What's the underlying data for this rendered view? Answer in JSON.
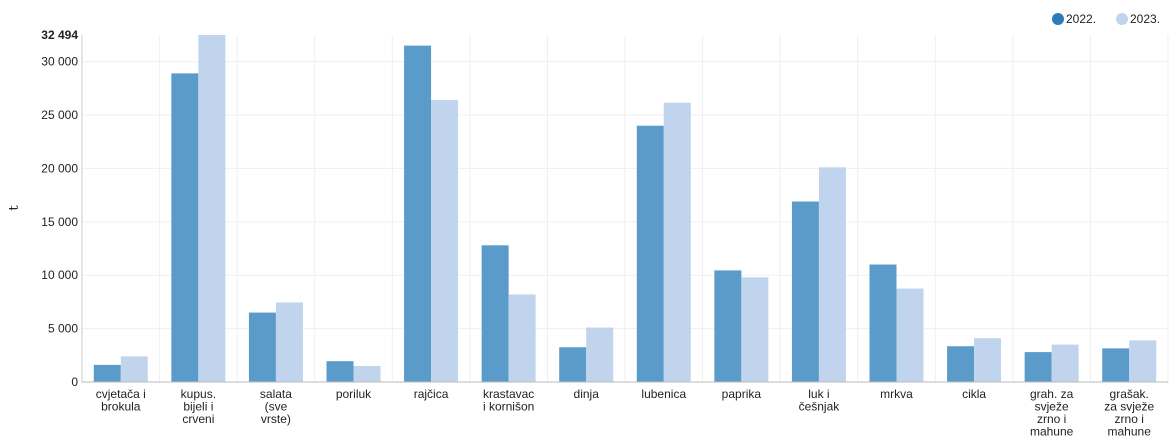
{
  "chart_data": {
    "type": "bar",
    "title": "",
    "xlabel": "",
    "ylabel": "t",
    "ylim": [
      0,
      32494
    ],
    "y_ticks": [
      "0",
      "5 000",
      "10 000",
      "15 000",
      "20 000",
      "25 000",
      "30 000"
    ],
    "y_max_label": "32 494",
    "grid": true,
    "legend_position": "top-right",
    "categories": [
      [
        "cvjetača i",
        "brokula"
      ],
      [
        "kupus.",
        "bijeli i",
        "crveni"
      ],
      [
        "salata",
        "(sve",
        "vrste)"
      ],
      [
        "poriluk"
      ],
      [
        "rajčica"
      ],
      [
        "krastavac",
        "i kornišon"
      ],
      [
        "dinja"
      ],
      [
        "lubenica"
      ],
      [
        "paprika"
      ],
      [
        "luk i",
        "češnjak"
      ],
      [
        "mrkva"
      ],
      [
        "cikla"
      ],
      [
        "grah. za",
        "svježe",
        "zrno i",
        "mahune"
      ],
      [
        "grašak.",
        "za svježe",
        "zrno i",
        "mahune"
      ]
    ],
    "series": [
      {
        "name": "2022.",
        "color": "#5b9bc9",
        "values": [
          1600,
          28900,
          6500,
          1950,
          31500,
          12800,
          3250,
          24000,
          10450,
          16900,
          11000,
          3350,
          2800,
          3150
        ]
      },
      {
        "name": "2023.",
        "color": "#c0d4ee",
        "values": [
          2400,
          32494,
          7450,
          1500,
          26400,
          8200,
          5100,
          26150,
          9800,
          20100,
          8750,
          4100,
          3500,
          3900
        ]
      }
    ],
    "legend_colors": [
      "#2b7bba",
      "#c0d4ee"
    ]
  }
}
